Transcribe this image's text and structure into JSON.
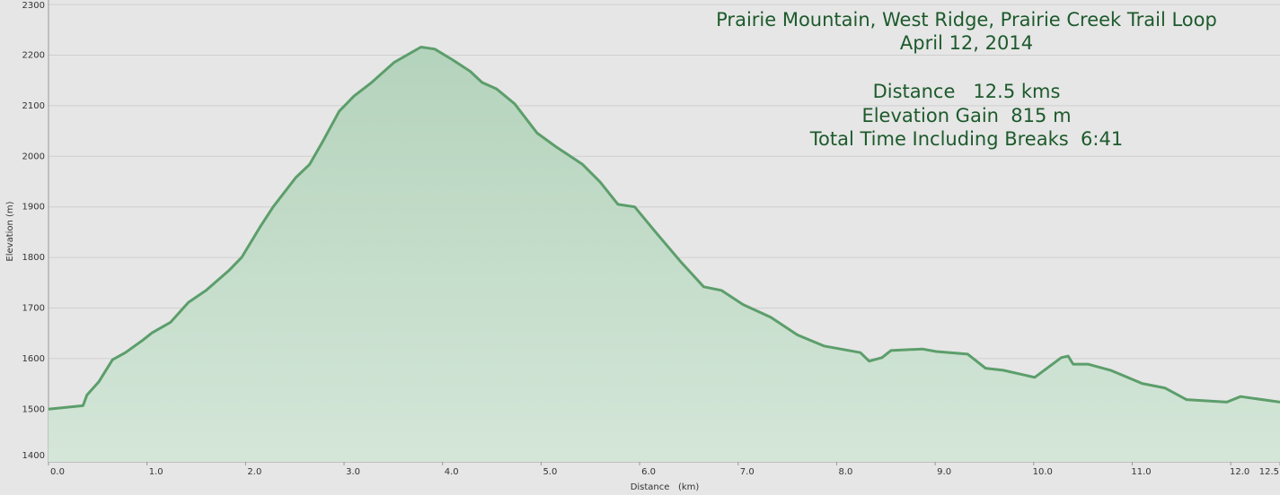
{
  "chart_data": {
    "type": "area",
    "title": "Prairie Mountain, West Ridge, Prairie Creek Trail Loop",
    "subtitle": "April 12, 2014",
    "annotations": [
      "Distance   12.5 kms",
      "Elevation Gain  815 m",
      "Total Time Including Breaks  6:41"
    ],
    "x_label": "Distance   (km)",
    "y_label": "Elevation (m)",
    "color": "#5c9e6b",
    "grid": true,
    "xlim": [
      0,
      12.5
    ],
    "ylim": [
      1396,
      2309
    ],
    "xticks": [
      {
        "value": 0,
        "label": "0.0"
      },
      {
        "value": 1,
        "label": "1.0"
      },
      {
        "value": 2,
        "label": "2.0"
      },
      {
        "value": 3,
        "label": "3.0"
      },
      {
        "value": 4,
        "label": "4.0"
      },
      {
        "value": 5,
        "label": "5.0"
      },
      {
        "value": 6,
        "label": "6.0"
      },
      {
        "value": 7,
        "label": "7.0"
      },
      {
        "value": 8,
        "label": "8.0"
      },
      {
        "value": 9,
        "label": "9.0"
      },
      {
        "value": 10,
        "label": "10.0"
      },
      {
        "value": 11,
        "label": "11.0"
      },
      {
        "value": 12,
        "label": "12.0"
      },
      12.5
    ],
    "yticks": [
      1400,
      1500,
      1600,
      1700,
      1800,
      1900,
      2000,
      2100,
      2200,
      2300
    ],
    "x": [
      0,
      0.35,
      0.39,
      0.51,
      0.65,
      0.78,
      0.96,
      1.05,
      1.24,
      1.42,
      1.6,
      1.83,
      1.96,
      2.15,
      2.28,
      2.51,
      2.65,
      2.78,
      2.95,
      3.1,
      3.28,
      3.51,
      3.78,
      3.92,
      4.1,
      4.28,
      4.4,
      4.55,
      4.73,
      4.96,
      5.15,
      5.42,
      5.6,
      5.78,
      5.95,
      6.15,
      6.42,
      6.65,
      6.83,
      7.05,
      7.33,
      7.6,
      7.87,
      8.24,
      8.33,
      8.46,
      8.55,
      8.87,
      9.01,
      9.33,
      9.51,
      9.69,
      10.01,
      10.28,
      10.35,
      10.4,
      10.55,
      10.78,
      11.1,
      11.33,
      11.55,
      11.96,
      12.1,
      12.5
    ],
    "values": [
      1500,
      1507,
      1528,
      1554,
      1598,
      1612,
      1637,
      1651,
      1672,
      1711,
      1735,
      1774,
      1800,
      1861,
      1900,
      1958,
      1984,
      2028,
      2089,
      2119,
      2146,
      2186,
      2216,
      2212,
      2191,
      2168,
      2146,
      2133,
      2104,
      2046,
      2019,
      1984,
      1949,
      1905,
      1900,
      1853,
      1791,
      1742,
      1735,
      1707,
      1682,
      1647,
      1625,
      1612,
      1595,
      1602,
      1616,
      1619,
      1614,
      1609,
      1581,
      1577,
      1563,
      1602,
      1605,
      1589,
      1589,
      1577,
      1551,
      1542,
      1519,
      1514,
      1525,
      1514
    ]
  }
}
